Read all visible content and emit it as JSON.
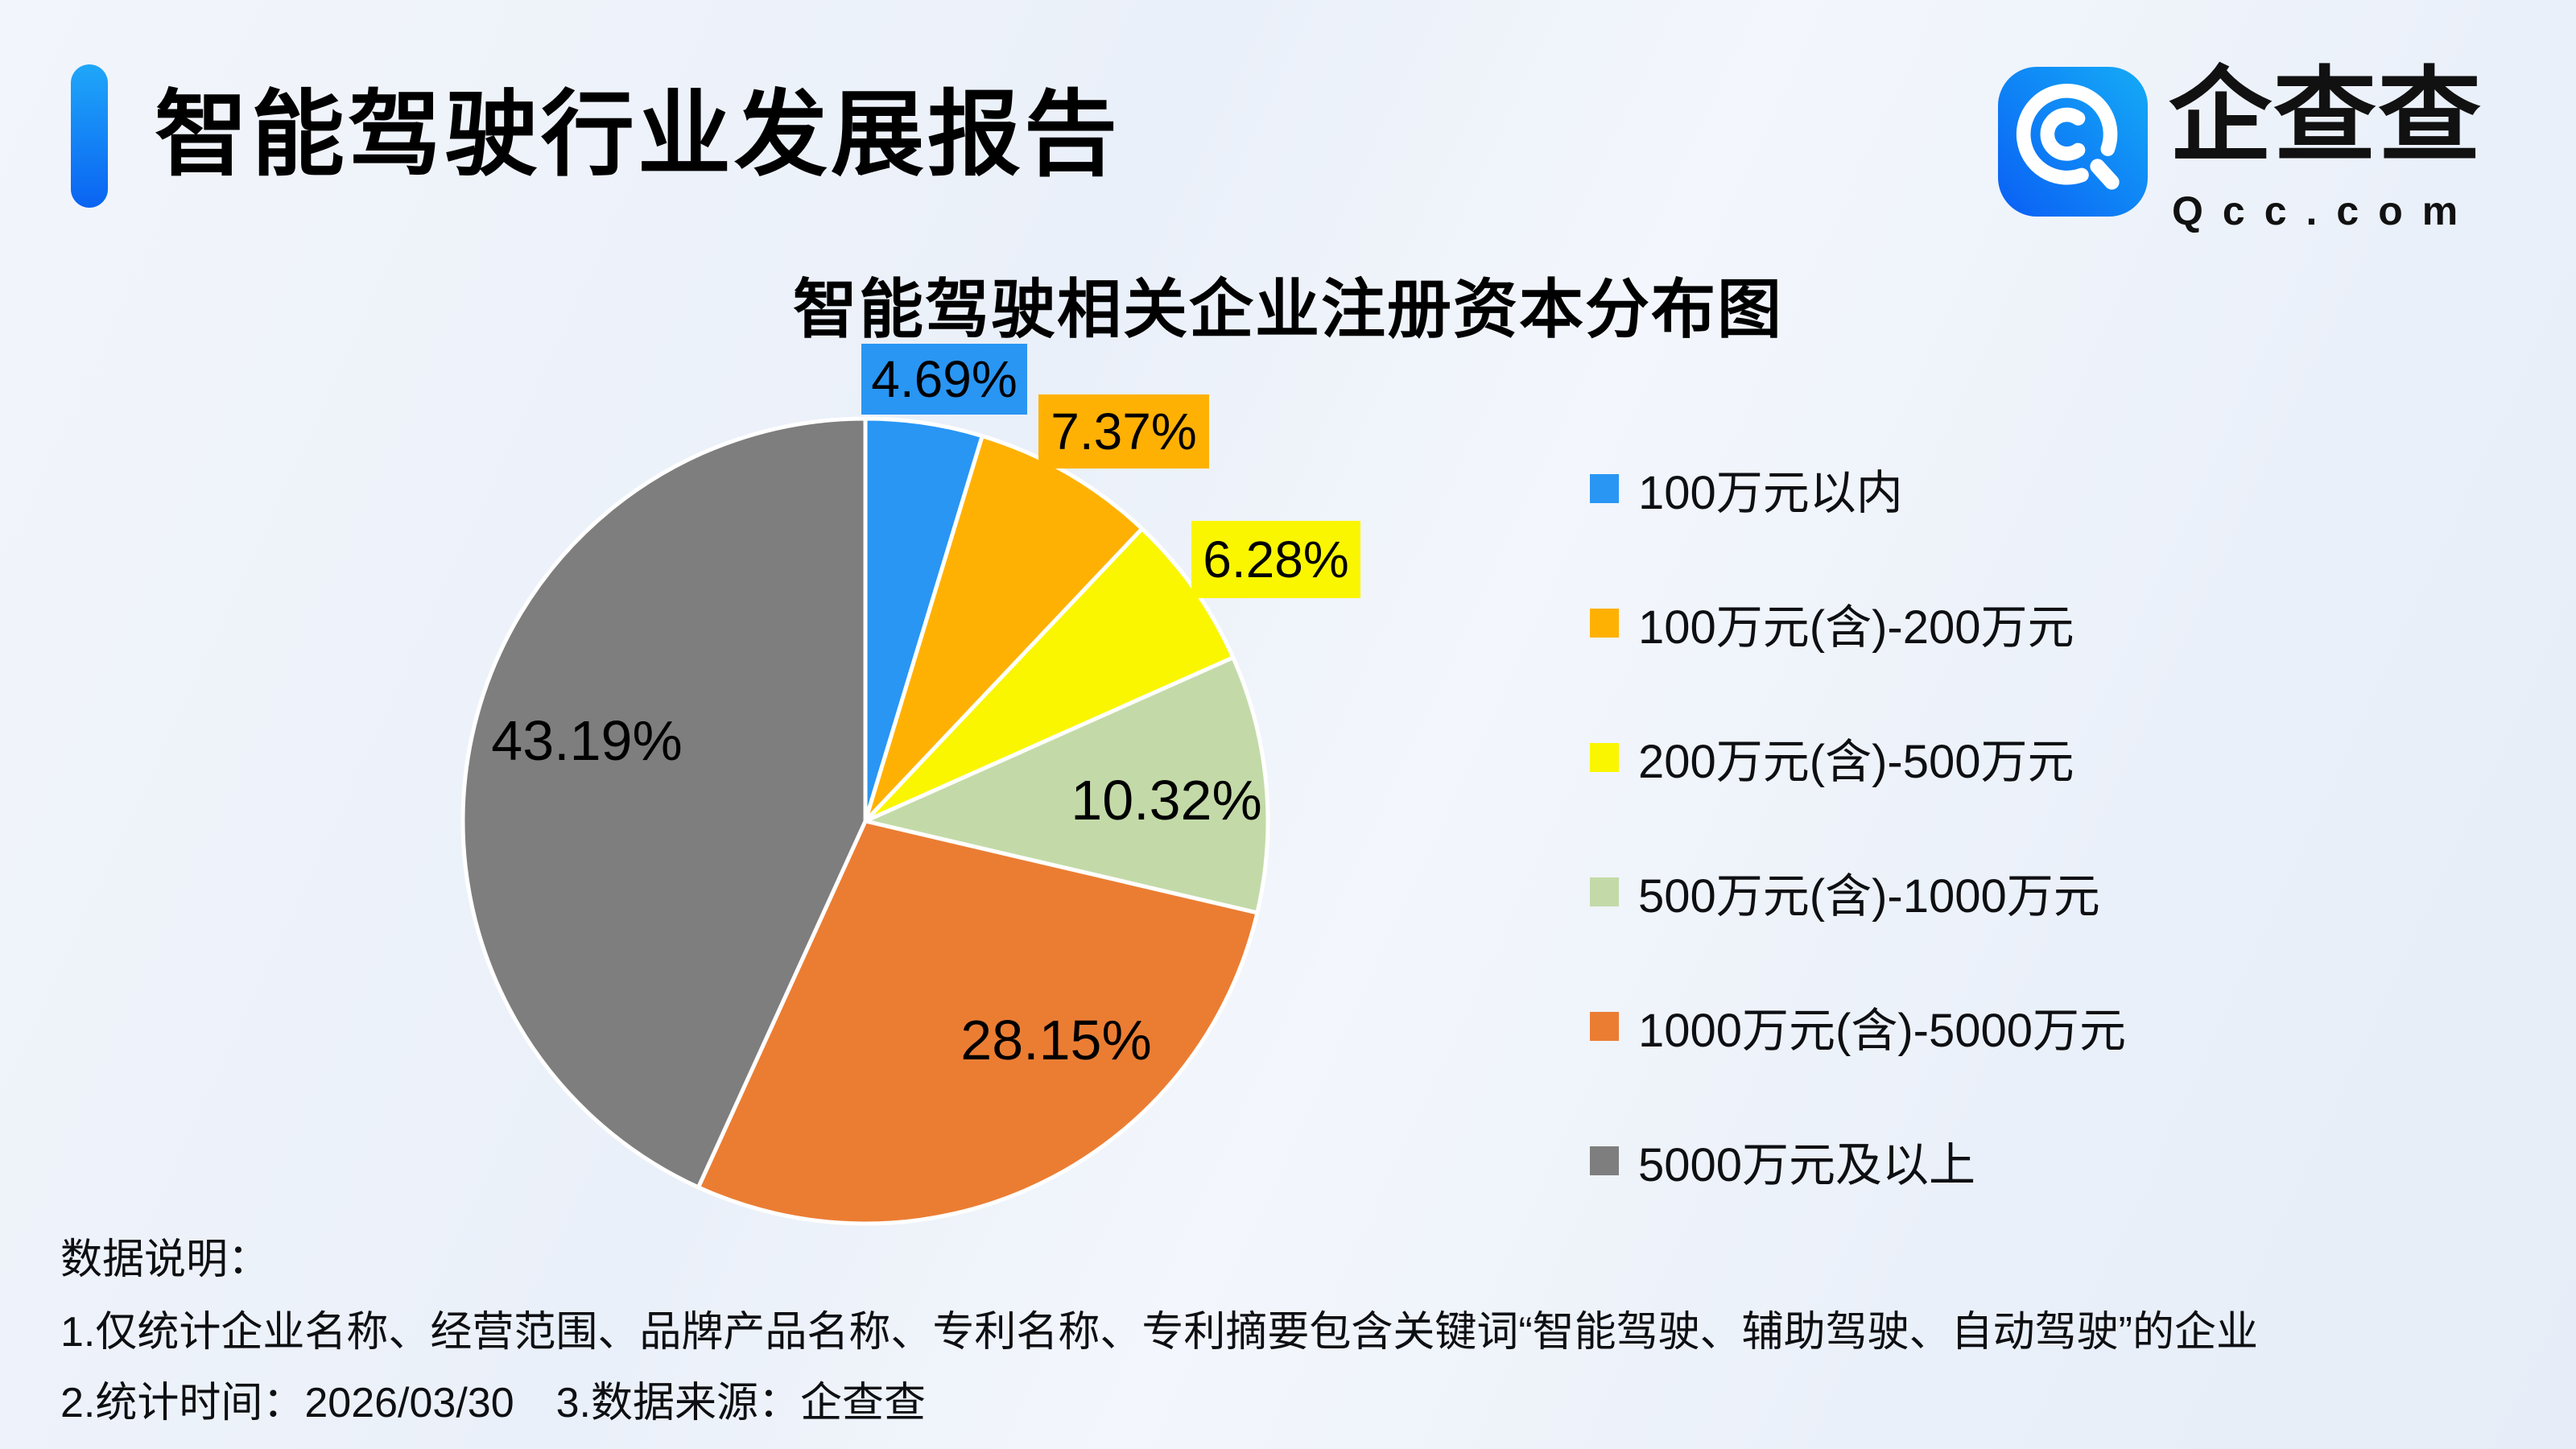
{
  "header": {
    "title": "智能驾驶行业发展报告"
  },
  "logo": {
    "brand": "企查查",
    "domain": "Qcc.com"
  },
  "theme": {
    "accent_top": "#1FA7F9",
    "accent_bottom": "#0A63F2",
    "logo_left": "#0A5FF5",
    "logo_right": "#14ABF6",
    "bg_1": "#F2F5FB",
    "bg_2": "#EAF0F9",
    "bg_3": "#E6EDF8",
    "ink": "#000000"
  },
  "chart_data": {
    "type": "pie",
    "title": "智能驾驶相关企业注册资本分布图",
    "unit": "%",
    "categories": [
      "100万元以内",
      "100万元(含)-200万元",
      "200万元(含)-500万元",
      "500万元(含)-1000万元",
      "1000万元(含)-5000万元",
      "5000万元及以上"
    ],
    "values": [
      4.69,
      7.37,
      6.28,
      10.32,
      28.15,
      43.19
    ],
    "labels": [
      "4.69%",
      "7.37%",
      "6.28%",
      "10.32%",
      "28.15%",
      "43.19%"
    ],
    "colors": [
      "#2996F4",
      "#FFB103",
      "#FAF600",
      "#C3DAA8",
      "#EB7D33",
      "#7E7E7E"
    ],
    "legend_position": "right",
    "start_angle": "top",
    "direction": "clockwise",
    "label_style": "first three labels in slice-colored boxes outside the pie, last three in black inside slices"
  },
  "notes": {
    "heading": "数据说明：",
    "line1": "1.仅统计企业名称、经营范围、品牌产品名称、专利名称、专利摘要包含关键词“智能驾驶、辅助驾驶、自动驾驶”的企业",
    "line2": "2.统计时间：2026/03/30　3.数据来源：企查查"
  }
}
